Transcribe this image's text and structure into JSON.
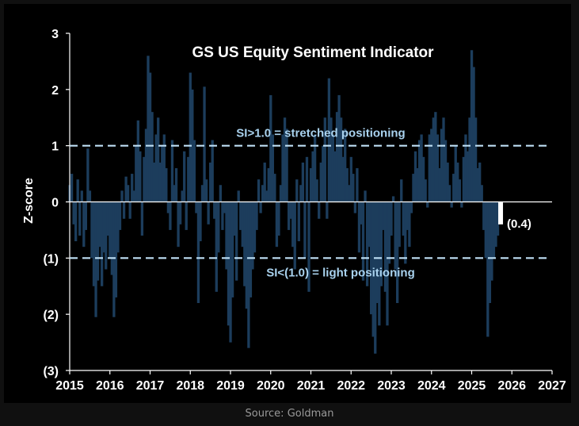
{
  "caption": "Source: Goldman",
  "colors": {
    "bar": "#1c3d5c",
    "threshold": "#bfe0f5",
    "latest": "#ffffff",
    "text": "#ffffff",
    "annotation": "#a9d2ee",
    "axis": "#ffffff"
  },
  "chart_data": {
    "type": "bar",
    "title": "GS US Equity  Sentiment Indicator",
    "ylabel": "Z-score",
    "xlabel": "",
    "ylim": [
      -3,
      3
    ],
    "xlim": [
      2015,
      2027
    ],
    "y_ticks": [
      {
        "value": 3,
        "label": "3"
      },
      {
        "value": 2,
        "label": "2"
      },
      {
        "value": 1,
        "label": "1"
      },
      {
        "value": 0,
        "label": "0"
      },
      {
        "value": -1,
        "label": "(1)"
      },
      {
        "value": -2,
        "label": "(2)"
      },
      {
        "value": -3,
        "label": "(3)"
      }
    ],
    "x_ticks": [
      "2015",
      "2016",
      "2017",
      "2018",
      "2019",
      "2020",
      "2021",
      "2022",
      "2023",
      "2024",
      "2025",
      "2026",
      "2027"
    ],
    "thresholds": [
      {
        "value": 1.0,
        "label": "SI>1.0 = stretched positioning"
      },
      {
        "value": -1.0,
        "label": "SI<(1.0) = light positioning"
      }
    ],
    "latest": {
      "x": 2025.72,
      "value": -0.4,
      "label": "(0.4)"
    },
    "series": [
      {
        "name": "GS US Equity Sentiment Indicator (weekly z-score)",
        "points": [
          [
            2015.0,
            0.3
          ],
          [
            2015.05,
            0.5
          ],
          [
            2015.1,
            -0.4
          ],
          [
            2015.15,
            -0.7
          ],
          [
            2015.2,
            0.4
          ],
          [
            2015.25,
            -0.6
          ],
          [
            2015.3,
            0.2
          ],
          [
            2015.35,
            -0.8
          ],
          [
            2015.4,
            -0.5
          ],
          [
            2015.45,
            0.95
          ],
          [
            2015.5,
            0.2
          ],
          [
            2015.55,
            -1.0
          ],
          [
            2015.6,
            -1.5
          ],
          [
            2015.65,
            -2.05
          ],
          [
            2015.7,
            -1.4
          ],
          [
            2015.75,
            -0.8
          ],
          [
            2015.8,
            -1.5
          ],
          [
            2015.85,
            -0.9
          ],
          [
            2015.9,
            -1.2
          ],
          [
            2015.95,
            -0.6
          ],
          [
            2016.0,
            -1.0
          ],
          [
            2016.05,
            -1.3
          ],
          [
            2016.1,
            -2.05
          ],
          [
            2016.15,
            -1.7
          ],
          [
            2016.2,
            -0.9
          ],
          [
            2016.25,
            -0.5
          ],
          [
            2016.3,
            0.2
          ],
          [
            2016.35,
            -0.3
          ],
          [
            2016.4,
            0.45
          ],
          [
            2016.45,
            0.3
          ],
          [
            2016.5,
            -0.3
          ],
          [
            2016.55,
            0.5
          ],
          [
            2016.6,
            0.2
          ],
          [
            2016.65,
            1.0
          ],
          [
            2016.7,
            1.45
          ],
          [
            2016.75,
            0.9
          ],
          [
            2016.8,
            -0.6
          ],
          [
            2016.85,
            0.8
          ],
          [
            2016.9,
            1.3
          ],
          [
            2016.95,
            2.6
          ],
          [
            2017.0,
            2.3
          ],
          [
            2017.05,
            1.6
          ],
          [
            2017.1,
            0.7
          ],
          [
            2017.15,
            1.2
          ],
          [
            2017.2,
            1.5
          ],
          [
            2017.25,
            0.7
          ],
          [
            2017.3,
            1.0
          ],
          [
            2017.35,
            1.2
          ],
          [
            2017.4,
            0.6
          ],
          [
            2017.45,
            -0.2
          ],
          [
            2017.5,
            -0.5
          ],
          [
            2017.55,
            1.1
          ],
          [
            2017.6,
            0.3
          ],
          [
            2017.65,
            0.6
          ],
          [
            2017.7,
            -0.8
          ],
          [
            2017.75,
            -0.4
          ],
          [
            2017.8,
            0.2
          ],
          [
            2017.85,
            0.9
          ],
          [
            2017.9,
            -0.5
          ],
          [
            2017.95,
            0.8
          ],
          [
            2018.0,
            2.3
          ],
          [
            2018.05,
            2.0
          ],
          [
            2018.1,
            1.1
          ],
          [
            2018.15,
            -0.2
          ],
          [
            2018.2,
            -1.8
          ],
          [
            2018.25,
            -0.7
          ],
          [
            2018.3,
            0.3
          ],
          [
            2018.35,
            2.05
          ],
          [
            2018.4,
            0.4
          ],
          [
            2018.45,
            -0.4
          ],
          [
            2018.5,
            0.7
          ],
          [
            2018.55,
            1.1
          ],
          [
            2018.6,
            -0.3
          ],
          [
            2018.65,
            -1.6
          ],
          [
            2018.7,
            -0.9
          ],
          [
            2018.75,
            0.3
          ],
          [
            2018.8,
            -0.5
          ],
          [
            2018.85,
            -0.2
          ],
          [
            2018.9,
            -1.2
          ],
          [
            2018.95,
            -2.2
          ],
          [
            2019.0,
            -2.5
          ],
          [
            2019.05,
            -1.7
          ],
          [
            2019.1,
            -0.6
          ],
          [
            2019.15,
            -1.4
          ],
          [
            2019.2,
            0.2
          ],
          [
            2019.25,
            -0.5
          ],
          [
            2019.3,
            -0.8
          ],
          [
            2019.35,
            -1.5
          ],
          [
            2019.4,
            -1.9
          ],
          [
            2019.45,
            -2.6
          ],
          [
            2019.5,
            -1.7
          ],
          [
            2019.55,
            -1.2
          ],
          [
            2019.6,
            -0.9
          ],
          [
            2019.65,
            -0.5
          ],
          [
            2019.7,
            0.4
          ],
          [
            2019.75,
            -0.2
          ],
          [
            2019.8,
            0.3
          ],
          [
            2019.85,
            0.7
          ],
          [
            2019.9,
            0.2
          ],
          [
            2019.95,
            0.6
          ],
          [
            2020.0,
            1.9
          ],
          [
            2020.05,
            1.2
          ],
          [
            2020.1,
            0.5
          ],
          [
            2020.15,
            -0.8
          ],
          [
            2020.2,
            -0.6
          ],
          [
            2020.25,
            0.3
          ],
          [
            2020.3,
            1.2
          ],
          [
            2020.35,
            1.5
          ],
          [
            2020.4,
            1.3
          ],
          [
            2020.45,
            -0.5
          ],
          [
            2020.5,
            -0.3
          ],
          [
            2020.55,
            -0.8
          ],
          [
            2020.6,
            -1.2
          ],
          [
            2020.65,
            0.4
          ],
          [
            2020.7,
            -0.7
          ],
          [
            2020.75,
            0.3
          ],
          [
            2020.8,
            0.7
          ],
          [
            2020.85,
            -1.0
          ],
          [
            2020.9,
            0.8
          ],
          [
            2020.95,
            -1.6
          ],
          [
            2021.0,
            0.6
          ],
          [
            2021.05,
            0.9
          ],
          [
            2021.1,
            1.2
          ],
          [
            2021.15,
            0.4
          ],
          [
            2021.2,
            -0.3
          ],
          [
            2021.25,
            0.7
          ],
          [
            2021.3,
            1.0
          ],
          [
            2021.35,
            1.5
          ],
          [
            2021.4,
            -0.3
          ],
          [
            2021.45,
            2.2
          ],
          [
            2021.5,
            1.5
          ],
          [
            2021.55,
            1.2
          ],
          [
            2021.6,
            0.9
          ],
          [
            2021.65,
            1.6
          ],
          [
            2021.7,
            1.9
          ],
          [
            2021.75,
            1.5
          ],
          [
            2021.8,
            0.8
          ],
          [
            2021.85,
            1.3
          ],
          [
            2021.9,
            0.6
          ],
          [
            2021.95,
            0.3
          ],
          [
            2022.0,
            0.8
          ],
          [
            2022.05,
            0.5
          ],
          [
            2022.1,
            -0.2
          ],
          [
            2022.15,
            0.6
          ],
          [
            2022.2,
            -0.9
          ],
          [
            2022.25,
            -0.4
          ],
          [
            2022.3,
            -1.4
          ],
          [
            2022.35,
            0.2
          ],
          [
            2022.4,
            -1.5
          ],
          [
            2022.45,
            -0.8
          ],
          [
            2022.5,
            -2.0
          ],
          [
            2022.55,
            -2.4
          ],
          [
            2022.6,
            -2.7
          ],
          [
            2022.65,
            -1.8
          ],
          [
            2022.7,
            -2.2
          ],
          [
            2022.75,
            -1.5
          ],
          [
            2022.8,
            -0.5
          ],
          [
            2022.85,
            -1.6
          ],
          [
            2022.9,
            -2.2
          ],
          [
            2022.95,
            -1.1
          ],
          [
            2023.0,
            -0.6
          ],
          [
            2023.05,
            0.1
          ],
          [
            2023.1,
            -1.2
          ],
          [
            2023.15,
            -1.8
          ],
          [
            2023.2,
            -0.8
          ],
          [
            2023.25,
            0.4
          ],
          [
            2023.3,
            -0.6
          ],
          [
            2023.35,
            -1.1
          ],
          [
            2023.4,
            -0.5
          ],
          [
            2023.45,
            -0.8
          ],
          [
            2023.5,
            -0.2
          ],
          [
            2023.55,
            0.5
          ],
          [
            2023.6,
            0.9
          ],
          [
            2023.65,
            0.6
          ],
          [
            2023.7,
            1.1
          ],
          [
            2023.75,
            1.2
          ],
          [
            2023.8,
            0.8
          ],
          [
            2023.85,
            0.4
          ],
          [
            2023.9,
            -0.1
          ],
          [
            2023.95,
            1.2
          ],
          [
            2024.0,
            1.3
          ],
          [
            2024.05,
            1.5
          ],
          [
            2024.1,
            1.6
          ],
          [
            2024.15,
            1.2
          ],
          [
            2024.2,
            0.6
          ],
          [
            2024.25,
            1.3
          ],
          [
            2024.3,
            1.5
          ],
          [
            2024.35,
            1.1
          ],
          [
            2024.4,
            0.7
          ],
          [
            2024.45,
            0.3
          ],
          [
            2024.5,
            -0.1
          ],
          [
            2024.55,
            0.5
          ],
          [
            2024.6,
            1.0
          ],
          [
            2024.65,
            0.7
          ],
          [
            2024.7,
            0.4
          ],
          [
            2024.75,
            -0.1
          ],
          [
            2024.8,
            0.8
          ],
          [
            2024.85,
            1.2
          ],
          [
            2024.9,
            0.9
          ],
          [
            2024.95,
            1.5
          ],
          [
            2025.0,
            2.7
          ],
          [
            2025.05,
            2.4
          ],
          [
            2025.1,
            1.5
          ],
          [
            2025.15,
            0.6
          ],
          [
            2025.2,
            0.7
          ],
          [
            2025.25,
            0.3
          ],
          [
            2025.3,
            -0.5
          ],
          [
            2025.35,
            -1.0
          ],
          [
            2025.4,
            -2.4
          ],
          [
            2025.45,
            -1.8
          ],
          [
            2025.5,
            -1.4
          ],
          [
            2025.55,
            -1.0
          ],
          [
            2025.6,
            -0.8
          ],
          [
            2025.65,
            -0.6
          ]
        ]
      }
    ]
  }
}
